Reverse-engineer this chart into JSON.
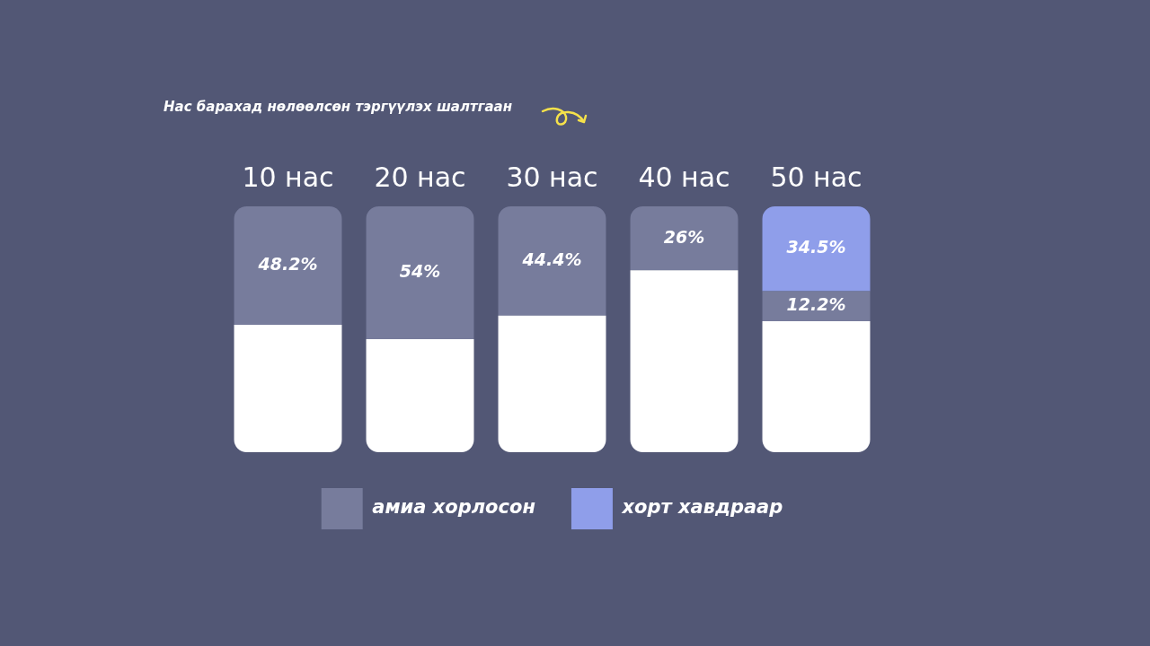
{
  "chart_data": {
    "type": "bar",
    "title": "Нас барахад нөлөөлсөн тэргүүлэх шалтгаан",
    "categories": [
      "10 нас",
      "20 нас",
      "30 нас",
      "40 нас",
      "50 нас"
    ],
    "stacked": true,
    "ylim": [
      0,
      100
    ],
    "grid": false,
    "legend": "bottom",
    "series": [
      {
        "color": "#ffffff",
        "values": [
          51.8,
          46,
          55.6,
          74,
          53.3
        ]
      },
      {
        "name": "амиа хорлосон",
        "color": "#777c9c",
        "values": [
          48.2,
          54,
          44.4,
          26,
          12.2
        ],
        "value_labels": [
          "48.2%",
          "54%",
          "44.4%",
          "26%",
          "12.2%"
        ]
      },
      {
        "name": "хорт хавдраар",
        "color": "#8f9eea",
        "values": [
          null,
          null,
          null,
          null,
          34.5
        ],
        "value_labels": [
          null,
          null,
          null,
          null,
          "34.5%"
        ]
      }
    ]
  }
}
